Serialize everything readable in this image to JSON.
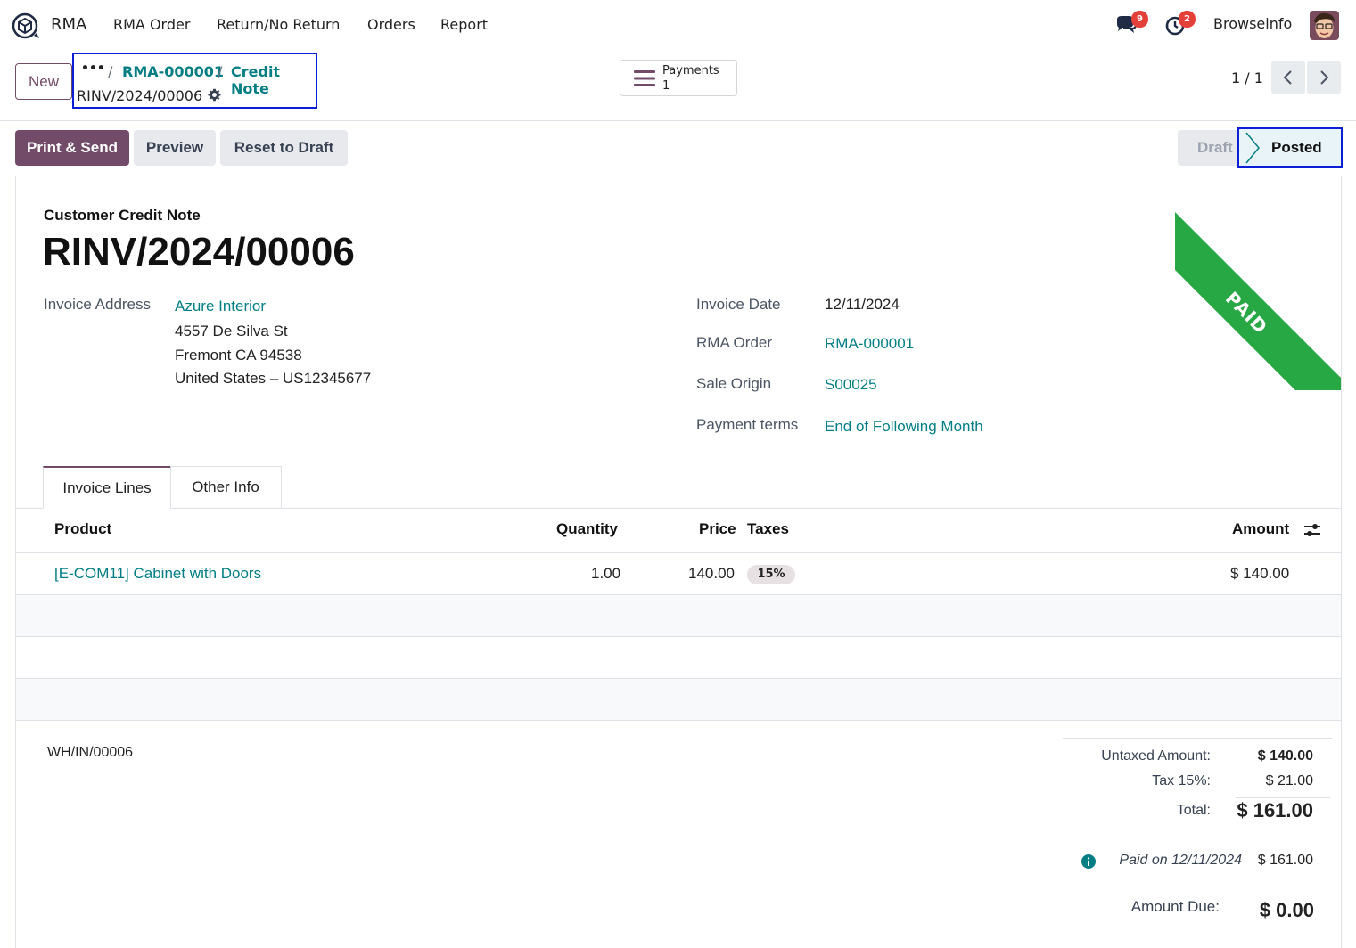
{
  "navbar": {
    "app_name": "RMA",
    "menu": [
      "RMA Order",
      "Return/No Return",
      "Orders",
      "Report"
    ],
    "messages_count": "9",
    "activities_count": "2",
    "user_name": "Browseinfo"
  },
  "control_panel": {
    "new_label": "New",
    "breadcrumb_dots": "•••",
    "breadcrumb": [
      "RMA-000001",
      "Credit Note"
    ],
    "current_record": "RINV/2024/00006",
    "payments_label": "Payments",
    "payments_count": "1",
    "pager_value": "1 / 1"
  },
  "actions": {
    "print_send": "Print & Send",
    "preview": "Preview",
    "reset_to_draft": "Reset to Draft"
  },
  "status": {
    "draft": "Draft",
    "posted": "Posted",
    "ribbon": "PAID"
  },
  "form": {
    "doc_type": "Customer Credit Note",
    "doc_name": "RINV/2024/00006",
    "invoice_address_label": "Invoice Address",
    "partner_name": "Azure Interior",
    "address_line1": "4557 De Silva St",
    "address_line2": "Fremont CA 94538",
    "address_line3": "United States – US12345677",
    "invoice_date_label": "Invoice Date",
    "invoice_date": "12/11/2024",
    "rma_order_label": "RMA Order",
    "rma_order": "RMA-000001",
    "sale_origin_label": "Sale Origin",
    "sale_origin": "S00025",
    "payment_terms_label": "Payment terms",
    "payment_terms": "End of Following Month"
  },
  "tabs": [
    "Invoice Lines",
    "Other Info"
  ],
  "table": {
    "columns": [
      "Product",
      "Quantity",
      "Price",
      "Taxes",
      "Amount"
    ],
    "rows": [
      {
        "product": "[E-COM11] Cabinet with Doors",
        "quantity": "1.00",
        "price": "140.00",
        "tax": "15%",
        "amount": "$ 140.00"
      }
    ]
  },
  "footer": {
    "reference": "WH/IN/00006",
    "untaxed_label": "Untaxed Amount:",
    "untaxed_value": "$ 140.00",
    "tax_label": "Tax 15%:",
    "tax_value": "$ 21.00",
    "total_label": "Total:",
    "total_value": "$ 161.00",
    "paid_on_label": "Paid on 12/11/2024",
    "paid_on_value": "$ 161.00",
    "amount_due_label": "Amount Due:",
    "amount_due_value": "$ 0.00"
  },
  "colors": {
    "brand": "#714b67",
    "link": "#017e84",
    "paid_ribbon": "#28a745",
    "highlight_border": "#0a1fd6",
    "badge": "#e4403a"
  }
}
